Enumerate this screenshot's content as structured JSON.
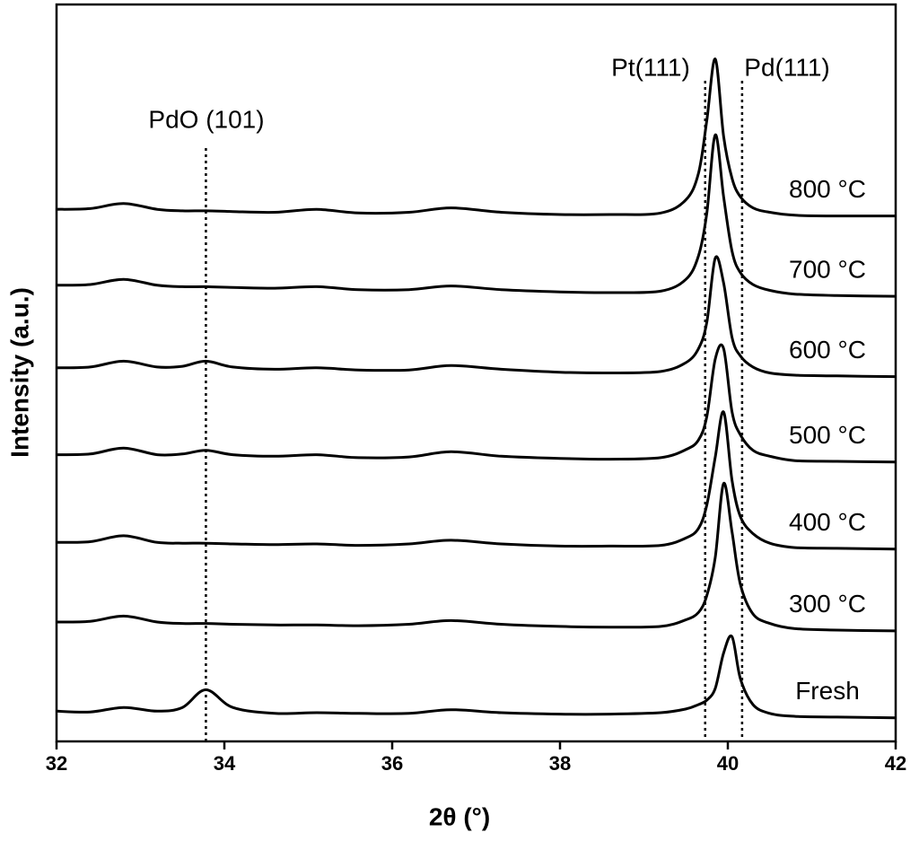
{
  "chart_data": {
    "type": "line",
    "xlabel": "2θ (°)",
    "ylabel": "Intensity (a.u.)",
    "xlim": [
      32,
      42
    ],
    "xticks": [
      32,
      34,
      36,
      38,
      40,
      42
    ],
    "ylim": [
      0,
      100
    ],
    "color": "#000000",
    "x": [
      32,
      32.4,
      32.8,
      33.2,
      33.5,
      33.78,
      34.1,
      34.6,
      35.1,
      35.6,
      36.2,
      36.7,
      37.3,
      38,
      38.6,
      39.2,
      39.5,
      39.65,
      39.75,
      39.85,
      39.95,
      40.05,
      40.15,
      40.3,
      40.5,
      40.8,
      41.3,
      42
    ],
    "series": [
      {
        "name": "Fresh",
        "values": [
          4.1,
          4.0,
          4.6,
          4.1,
          4.6,
          7.0,
          4.6,
          3.8,
          3.9,
          3.8,
          3.8,
          4.3,
          3.9,
          3.7,
          3.7,
          3.9,
          4.4,
          5.0,
          5.6,
          7.2,
          12.0,
          14.2,
          8.5,
          5.0,
          3.8,
          3.4,
          3.3,
          3.2
        ]
      },
      {
        "name": "300 °C",
        "values": [
          16.2,
          16.3,
          17.0,
          16.2,
          16.0,
          16.0,
          15.9,
          15.8,
          15.8,
          15.7,
          15.9,
          16.4,
          15.9,
          15.6,
          15.5,
          15.6,
          16.5,
          17.5,
          19.8,
          25.0,
          35.0,
          28.4,
          21.3,
          17.3,
          16.0,
          15.3,
          15.1,
          15.0
        ]
      },
      {
        "name": "400 °C",
        "values": [
          27.0,
          27.1,
          27.9,
          27.0,
          26.9,
          26.9,
          26.8,
          26.7,
          26.8,
          26.6,
          26.8,
          27.3,
          26.8,
          26.5,
          26.5,
          26.6,
          27.6,
          28.9,
          32.1,
          38.6,
          44.7,
          35.4,
          30.5,
          28.2,
          26.9,
          26.3,
          26.2,
          26.1
        ]
      },
      {
        "name": "500 °C",
        "values": [
          38.9,
          39.0,
          39.8,
          38.9,
          39.0,
          39.5,
          38.9,
          38.7,
          38.9,
          38.5,
          38.6,
          39.3,
          38.7,
          38.4,
          38.3,
          38.5,
          39.6,
          40.9,
          44.1,
          51.9,
          53.3,
          44.7,
          41.6,
          39.5,
          38.7,
          38.1,
          38.0,
          37.9
        ]
      },
      {
        "name": "600 °C",
        "values": [
          50.7,
          50.8,
          51.6,
          50.8,
          50.9,
          51.6,
          50.8,
          50.5,
          50.7,
          50.4,
          50.4,
          51.0,
          50.5,
          50.1,
          50.0,
          50.2,
          51.4,
          53.3,
          56.9,
          65.6,
          62.2,
          54.8,
          52.3,
          50.8,
          50.0,
          49.7,
          49.6,
          49.5
        ]
      },
      {
        "name": "700 °C",
        "values": [
          61.9,
          62.0,
          62.7,
          61.9,
          61.7,
          61.7,
          61.6,
          61.5,
          61.7,
          61.3,
          61.3,
          61.8,
          61.3,
          61.0,
          60.9,
          61.1,
          62.7,
          65.9,
          71.7,
          82.3,
          73.9,
          66.5,
          63.6,
          62.0,
          61.2,
          60.7,
          60.5,
          60.4
        ]
      },
      {
        "name": "800 °C",
        "values": [
          72.2,
          72.3,
          73.0,
          72.2,
          72.0,
          72.0,
          71.9,
          71.8,
          72.2,
          71.7,
          71.8,
          72.4,
          71.8,
          71.5,
          71.5,
          71.7,
          73.5,
          77.1,
          84.3,
          92.6,
          82.1,
          76.4,
          73.9,
          72.4,
          71.8,
          71.4,
          71.3,
          71.3
        ]
      }
    ],
    "annotations": [
      {
        "text": "PdO (101)",
        "x": 33.78
      },
      {
        "text": "Pt(111)",
        "x": 39.73
      },
      {
        "text": "Pd(111)",
        "x": 40.17
      }
    ]
  }
}
